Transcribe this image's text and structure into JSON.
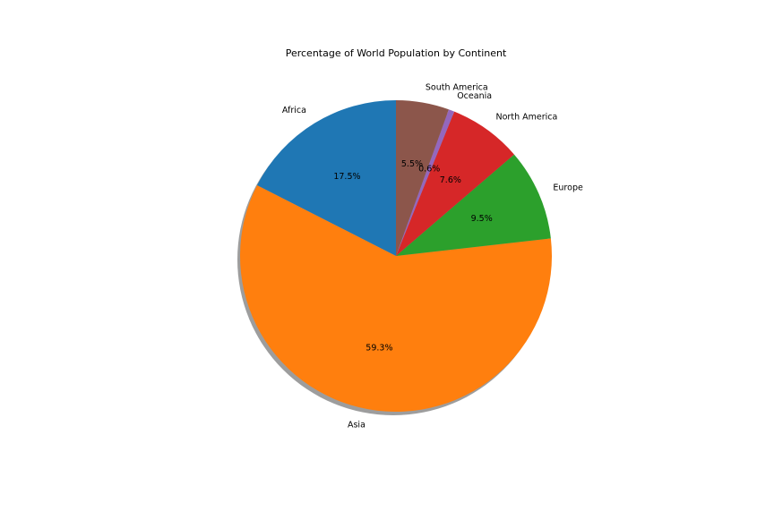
{
  "chart_data": {
    "type": "pie",
    "title": "Percentage of World Population by Continent",
    "slices": [
      {
        "label": "Africa",
        "value": 17.5,
        "pct_label": "17.5%",
        "color": "#1f77b4"
      },
      {
        "label": "Asia",
        "value": 59.3,
        "pct_label": "59.3%",
        "color": "#ff7f0e"
      },
      {
        "label": "Europe",
        "value": 9.5,
        "pct_label": "9.5%",
        "color": "#2ca02c"
      },
      {
        "label": "North America",
        "value": 7.6,
        "pct_label": "7.6%",
        "color": "#d62728"
      },
      {
        "label": "Oceania",
        "value": 0.6,
        "pct_label": "0.6%",
        "color": "#9467bd"
      },
      {
        "label": "South America",
        "value": 5.5,
        "pct_label": "5.5%",
        "color": "#8c564b"
      }
    ],
    "start_angle_deg": 90,
    "direction": "counterclockwise",
    "shadow": true,
    "legend": "none"
  }
}
